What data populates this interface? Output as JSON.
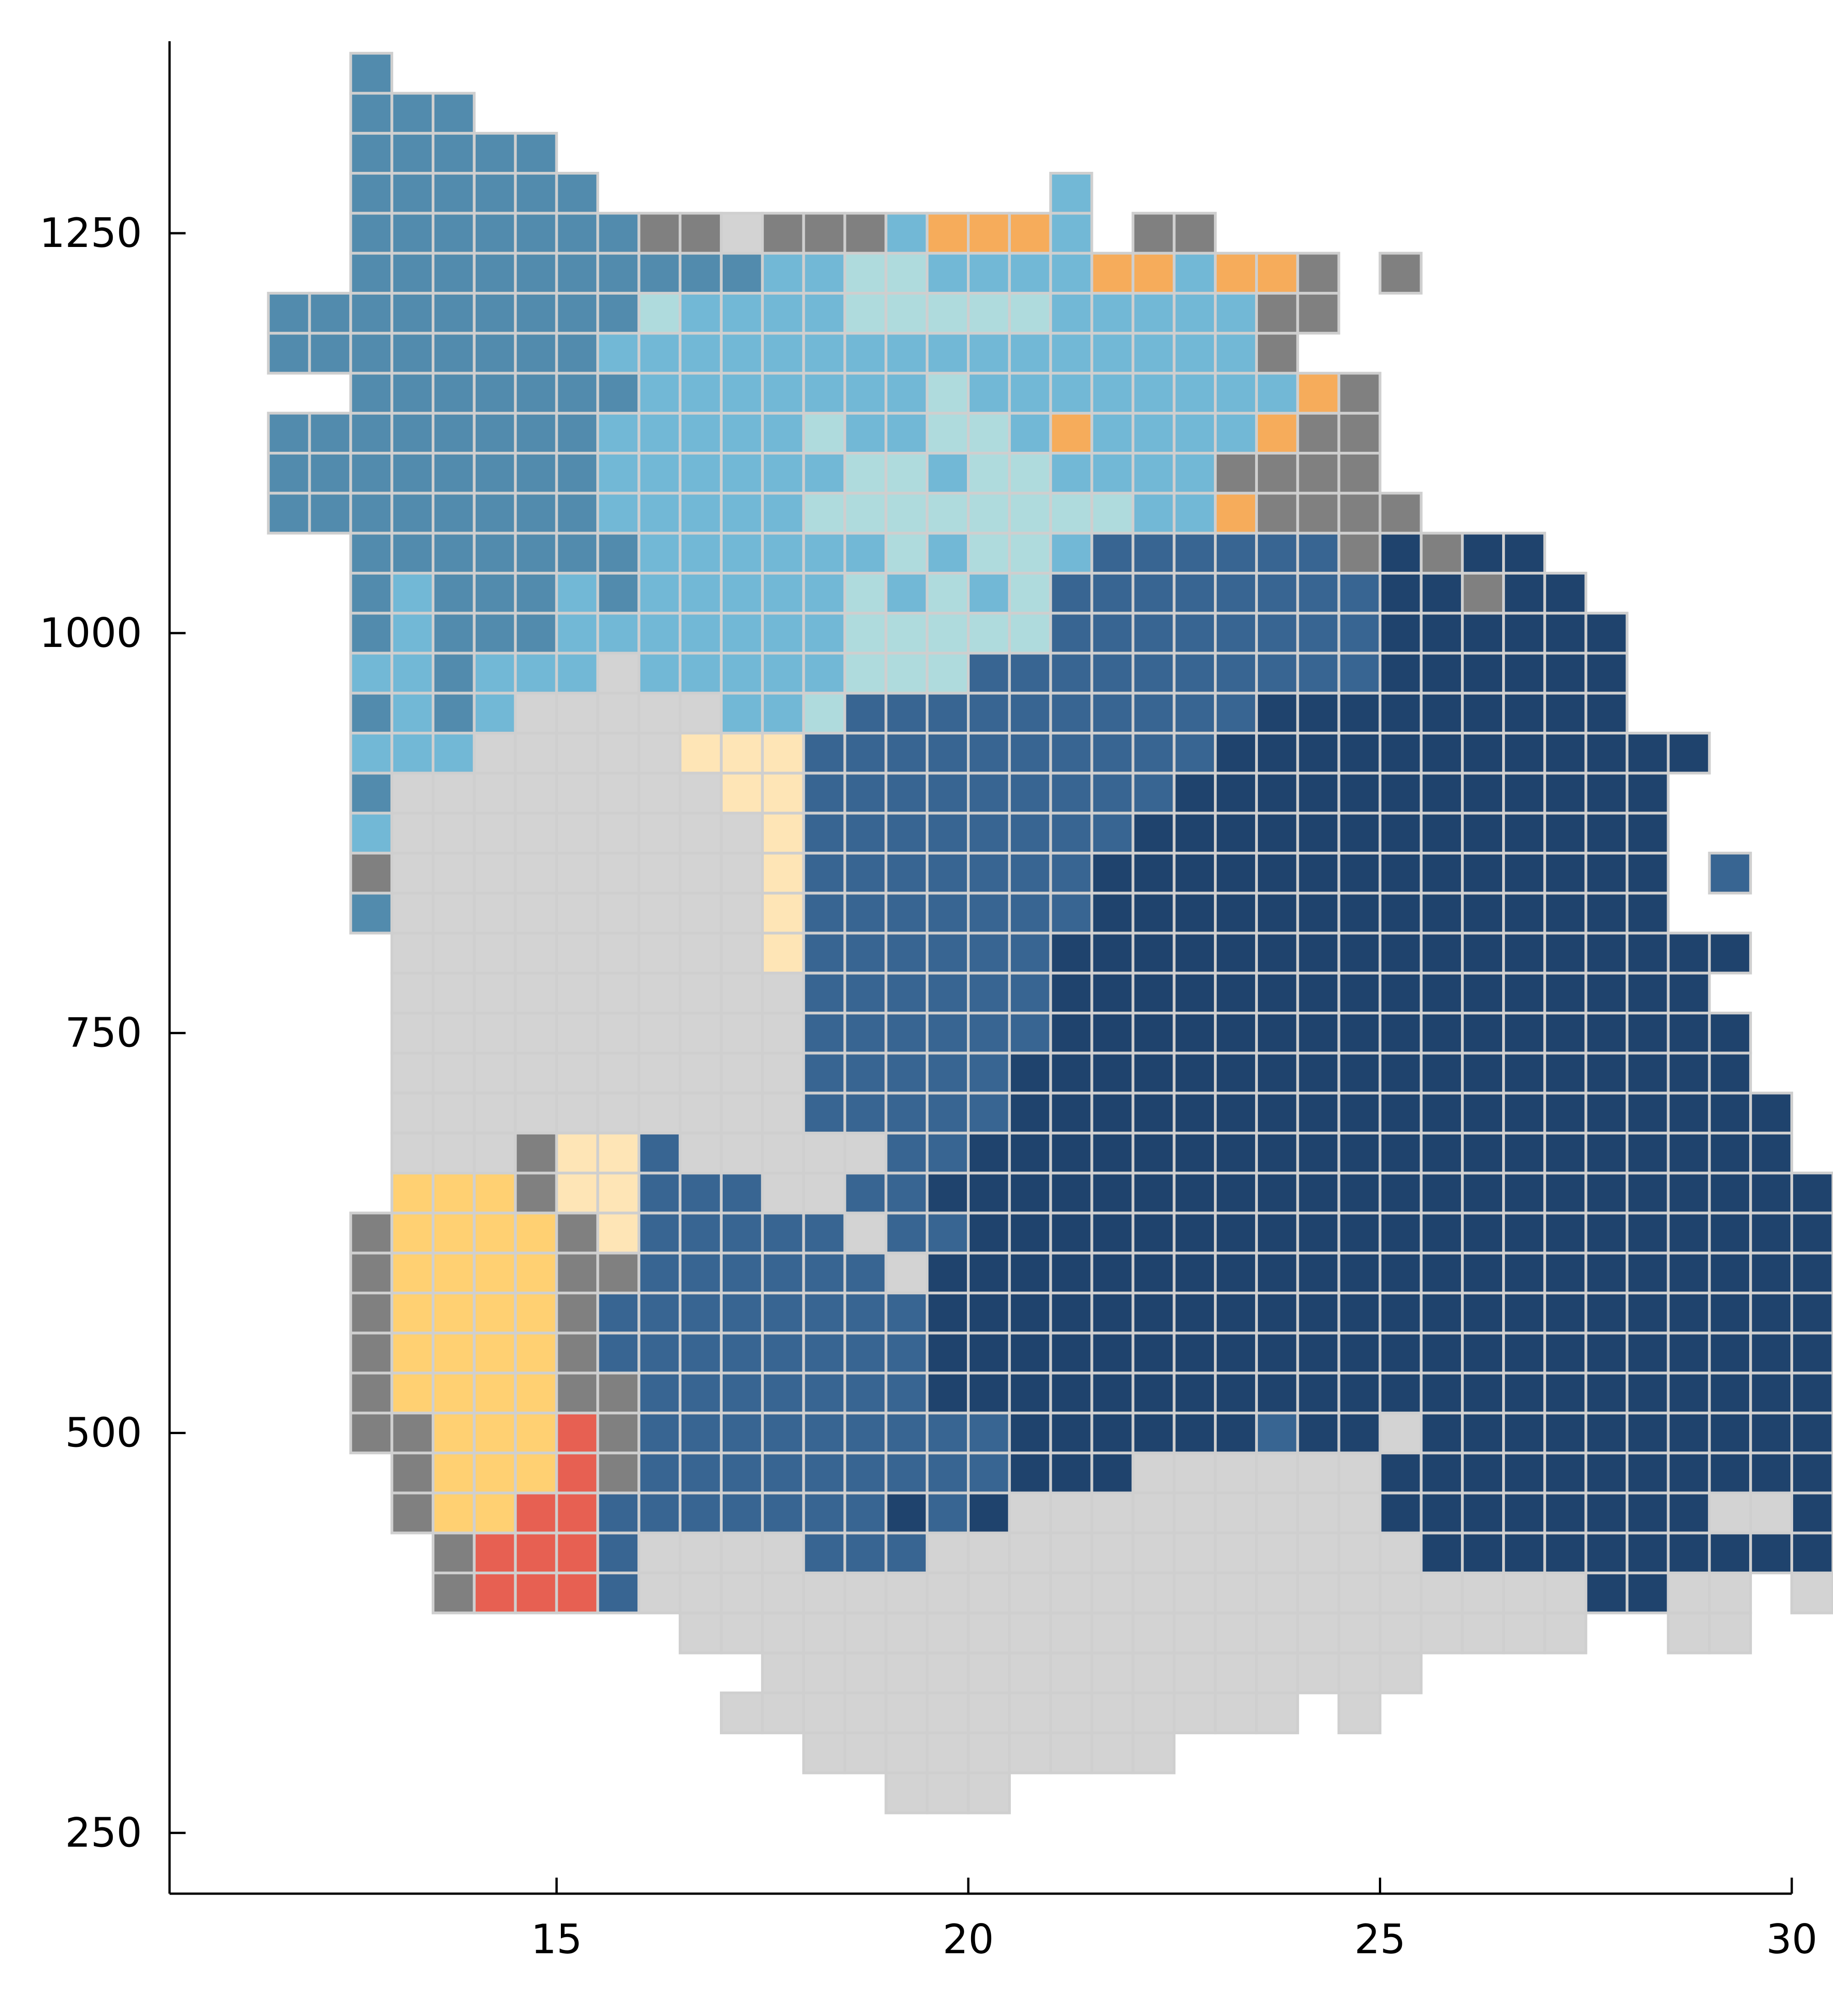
{
  "chart_data": {
    "type": "heatmap",
    "title": "",
    "xlabel": "",
    "ylabel": "",
    "xlim": [
      10.3,
      30
    ],
    "ylim": [
      212,
      1370
    ],
    "x_ticks": [
      15,
      20,
      25,
      30
    ],
    "y_ticks": [
      250,
      500,
      750,
      1000,
      1250
    ],
    "grid": false,
    "legend": "none",
    "cell_size": [
      0.5,
      25
    ],
    "x_origin": 12.25,
    "y_origin": 275,
    "palette": {
      "L": "#d3d3d3",
      "G": "#808080",
      "N": "#1f436d",
      "M": "#386592",
      "T": "#528bad",
      "S": "#72b8d6",
      "A": "#afdbdd",
      "O": "#f6ac5b",
      "Y": "#ffd072",
      "C": "#fee5b6",
      "R": "#e76052"
    },
    "rows": [
      "..................................",
      "..........LLLLLLL.................",
      "........LLLLLLLLLLL...............",
      ".........LLLLLLLLLLLLLL.L.........",
      "........LLLLLLLLLLLLLLLLLL........",
      "..............................LL..LL..L..",
      "...GRRRM..............NNLLNL..L",
      "...GRRRMLLLLMMMLLLLLLLLLLNNNNNNNNNN",
      "..GYYYRGMMMMMMNMNLLLLLLLLNNNNNNNLLNNNN",
      "..GYYYRGMMMMMMMMNNNLLLLLNNNNNNNNNNNNN.NN"
    ]
  }
}
